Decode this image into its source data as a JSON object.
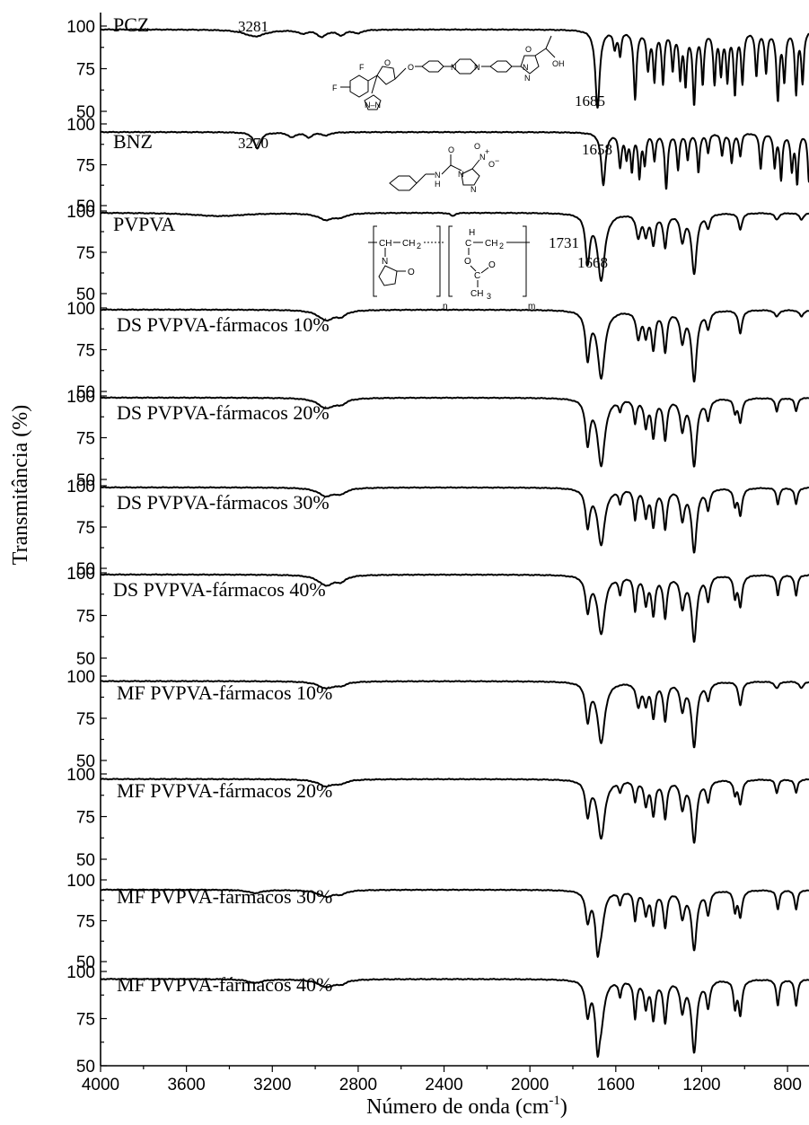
{
  "chart_data": {
    "type": "line",
    "xlabel": "Número de onda (cm",
    "xlabel_sup": "-1",
    "xlabel_close": ")",
    "ylabel": "Transmitância (%)",
    "xlim": [
      4000,
      700
    ],
    "x_ticks": [
      4000,
      3600,
      3200,
      2800,
      2400,
      2000,
      1600,
      1200,
      800
    ],
    "y_ticks": [
      50,
      75,
      100
    ],
    "series": [
      {
        "name": "PCZ",
        "baseline": 98,
        "bands": [
          [
            3281,
            4,
            60
          ],
          [
            3060,
            2,
            25
          ],
          [
            2970,
            4,
            25
          ],
          [
            2880,
            3,
            25
          ],
          [
            2800,
            2,
            20
          ],
          [
            1685,
            46,
            12
          ],
          [
            1605,
            10,
            8
          ],
          [
            1580,
            14,
            7
          ],
          [
            1510,
            40,
            8
          ],
          [
            1450,
            22,
            8
          ],
          [
            1420,
            28,
            7
          ],
          [
            1380,
            30,
            7
          ],
          [
            1335,
            22,
            7
          ],
          [
            1300,
            26,
            7
          ],
          [
            1275,
            30,
            7
          ],
          [
            1235,
            42,
            8
          ],
          [
            1195,
            30,
            7
          ],
          [
            1140,
            30,
            7
          ],
          [
            1110,
            24,
            7
          ],
          [
            1080,
            28,
            7
          ],
          [
            1045,
            36,
            7
          ],
          [
            1010,
            30,
            7
          ],
          [
            945,
            26,
            7
          ],
          [
            900,
            24,
            7
          ],
          [
            845,
            40,
            8
          ],
          [
            815,
            28,
            7
          ],
          [
            760,
            36,
            7
          ],
          [
            730,
            30,
            7
          ]
        ],
        "annotations": [
          {
            "text": "3281",
            "x": 3281
          },
          {
            "text": "1685",
            "x": 1685
          }
        ]
      },
      {
        "name": "BNZ",
        "baseline": 95,
        "bands": [
          [
            3270,
            10,
            18
          ],
          [
            3110,
            3,
            20
          ],
          [
            3030,
            3,
            20
          ],
          [
            2950,
            2,
            20
          ],
          [
            1658,
            32,
            12
          ],
          [
            1580,
            20,
            8
          ],
          [
            1550,
            14,
            7
          ],
          [
            1525,
            22,
            7
          ],
          [
            1490,
            26,
            7
          ],
          [
            1465,
            18,
            7
          ],
          [
            1420,
            16,
            7
          ],
          [
            1365,
            34,
            8
          ],
          [
            1310,
            22,
            7
          ],
          [
            1265,
            16,
            7
          ],
          [
            1215,
            24,
            7
          ],
          [
            1170,
            12,
            7
          ],
          [
            1105,
            14,
            7
          ],
          [
            1060,
            18,
            7
          ],
          [
            1020,
            14,
            7
          ],
          [
            925,
            22,
            7
          ],
          [
            860,
            20,
            7
          ],
          [
            830,
            28,
            7
          ],
          [
            780,
            22,
            7
          ],
          [
            755,
            30,
            7
          ],
          [
            700,
            30,
            7
          ]
        ],
        "annotations": [
          {
            "text": "3270",
            "x": 3270
          },
          {
            "text": "1658",
            "x": 1658
          }
        ]
      },
      {
        "name": "PVPVA",
        "baseline": 99,
        "bands": [
          [
            3450,
            2,
            150
          ],
          [
            2950,
            4,
            45
          ],
          [
            2880,
            2,
            30
          ],
          [
            2360,
            2,
            12
          ],
          [
            1731,
            28,
            12
          ],
          [
            1668,
            40,
            20
          ],
          [
            1495,
            14,
            12
          ],
          [
            1460,
            12,
            10
          ],
          [
            1425,
            18,
            10
          ],
          [
            1370,
            20,
            10
          ],
          [
            1290,
            16,
            12
          ],
          [
            1235,
            36,
            14
          ],
          [
            1170,
            8,
            10
          ],
          [
            1020,
            10,
            10
          ],
          [
            850,
            4,
            12
          ],
          [
            735,
            4,
            12
          ]
        ],
        "annotations": [
          {
            "text": "1731",
            "x": 1731
          },
          {
            "text": "1668",
            "x": 1668
          }
        ]
      },
      {
        "name": "DS PVPVA-fármacos 10%",
        "baseline": 99,
        "bands": [
          [
            2950,
            6,
            45
          ],
          [
            2880,
            3,
            30
          ],
          [
            1731,
            28,
            12
          ],
          [
            1668,
            40,
            20
          ],
          [
            1495,
            16,
            12
          ],
          [
            1460,
            14,
            10
          ],
          [
            1425,
            22,
            10
          ],
          [
            1370,
            24,
            10
          ],
          [
            1290,
            18,
            12
          ],
          [
            1235,
            42,
            14
          ],
          [
            1170,
            10,
            10
          ],
          [
            1020,
            14,
            10
          ],
          [
            850,
            4,
            12
          ],
          [
            735,
            4,
            12
          ]
        ]
      },
      {
        "name": "DS PVPVA-fármacos 20%",
        "baseline": 99,
        "bands": [
          [
            2950,
            6,
            45
          ],
          [
            2880,
            3,
            30
          ],
          [
            1731,
            26,
            12
          ],
          [
            1668,
            40,
            20
          ],
          [
            1580,
            6,
            8
          ],
          [
            1510,
            14,
            8
          ],
          [
            1460,
            16,
            10
          ],
          [
            1425,
            22,
            10
          ],
          [
            1370,
            24,
            10
          ],
          [
            1290,
            18,
            12
          ],
          [
            1235,
            40,
            14
          ],
          [
            1170,
            12,
            10
          ],
          [
            1045,
            8,
            8
          ],
          [
            1020,
            14,
            10
          ],
          [
            850,
            8,
            8
          ],
          [
            760,
            8,
            8
          ]
        ]
      },
      {
        "name": "DS PVPVA-fármacos 30%",
        "baseline": 99,
        "bands": [
          [
            2950,
            5,
            45
          ],
          [
            2880,
            3,
            30
          ],
          [
            1731,
            22,
            12
          ],
          [
            1668,
            34,
            20
          ],
          [
            1580,
            8,
            8
          ],
          [
            1510,
            18,
            8
          ],
          [
            1460,
            16,
            10
          ],
          [
            1425,
            22,
            10
          ],
          [
            1370,
            24,
            10
          ],
          [
            1290,
            18,
            12
          ],
          [
            1235,
            38,
            14
          ],
          [
            1170,
            12,
            10
          ],
          [
            1045,
            10,
            8
          ],
          [
            1020,
            16,
            10
          ],
          [
            845,
            10,
            8
          ],
          [
            760,
            10,
            8
          ]
        ]
      },
      {
        "name": "DS PVPVA-fármacos 40%",
        "baseline": 99,
        "bands": [
          [
            2950,
            6,
            45
          ],
          [
            2880,
            3,
            30
          ],
          [
            1731,
            20,
            12
          ],
          [
            1668,
            34,
            20
          ],
          [
            1580,
            10,
            8
          ],
          [
            1510,
            20,
            8
          ],
          [
            1460,
            16,
            10
          ],
          [
            1425,
            22,
            10
          ],
          [
            1370,
            24,
            10
          ],
          [
            1290,
            18,
            12
          ],
          [
            1235,
            38,
            14
          ],
          [
            1170,
            14,
            10
          ],
          [
            1045,
            12,
            8
          ],
          [
            1020,
            18,
            10
          ],
          [
            845,
            12,
            8
          ],
          [
            760,
            12,
            8
          ]
        ]
      },
      {
        "name": "MF PVPVA-fármacos 10%",
        "baseline": 97,
        "bands": [
          [
            2950,
            4,
            45
          ],
          [
            2880,
            2,
            30
          ],
          [
            1731,
            22,
            12
          ],
          [
            1668,
            36,
            20
          ],
          [
            1495,
            14,
            12
          ],
          [
            1460,
            12,
            10
          ],
          [
            1425,
            20,
            10
          ],
          [
            1370,
            22,
            10
          ],
          [
            1290,
            16,
            12
          ],
          [
            1235,
            38,
            14
          ],
          [
            1170,
            10,
            10
          ],
          [
            1020,
            14,
            10
          ],
          [
            850,
            4,
            12
          ],
          [
            735,
            4,
            12
          ]
        ]
      },
      {
        "name": "MF PVPVA-fármacos 20%",
        "baseline": 97,
        "bands": [
          [
            2950,
            4,
            45
          ],
          [
            2880,
            2,
            30
          ],
          [
            1731,
            20,
            12
          ],
          [
            1668,
            34,
            20
          ],
          [
            1580,
            6,
            8
          ],
          [
            1510,
            12,
            8
          ],
          [
            1460,
            14,
            10
          ],
          [
            1425,
            20,
            10
          ],
          [
            1370,
            22,
            10
          ],
          [
            1290,
            16,
            12
          ],
          [
            1235,
            36,
            14
          ],
          [
            1170,
            12,
            10
          ],
          [
            1045,
            8,
            8
          ],
          [
            1020,
            14,
            10
          ],
          [
            850,
            8,
            8
          ],
          [
            760,
            8,
            8
          ]
        ]
      },
      {
        "name": "MF PVPVA-fármacos 30%",
        "baseline": 94,
        "bands": [
          [
            3281,
            2,
            40
          ],
          [
            2950,
            4,
            45
          ],
          [
            2880,
            2,
            30
          ],
          [
            1731,
            18,
            12
          ],
          [
            1685,
            30,
            12
          ],
          [
            1668,
            18,
            18
          ],
          [
            1580,
            8,
            8
          ],
          [
            1510,
            18,
            8
          ],
          [
            1460,
            14,
            10
          ],
          [
            1425,
            20,
            10
          ],
          [
            1370,
            22,
            10
          ],
          [
            1290,
            16,
            12
          ],
          [
            1235,
            36,
            14
          ],
          [
            1170,
            14,
            10
          ],
          [
            1045,
            12,
            8
          ],
          [
            1020,
            16,
            10
          ],
          [
            845,
            12,
            8
          ],
          [
            760,
            12,
            8
          ]
        ]
      },
      {
        "name": "MF PVPVA-fármacos 40%",
        "baseline": 96,
        "bands": [
          [
            3281,
            2,
            40
          ],
          [
            2950,
            4,
            45
          ],
          [
            2880,
            2,
            30
          ],
          [
            1731,
            18,
            12
          ],
          [
            1685,
            30,
            12
          ],
          [
            1668,
            18,
            18
          ],
          [
            1580,
            8,
            8
          ],
          [
            1510,
            20,
            8
          ],
          [
            1460,
            14,
            10
          ],
          [
            1425,
            20,
            10
          ],
          [
            1370,
            22,
            10
          ],
          [
            1290,
            16,
            12
          ],
          [
            1235,
            38,
            14
          ],
          [
            1170,
            14,
            10
          ],
          [
            1045,
            14,
            8
          ],
          [
            1020,
            18,
            10
          ],
          [
            845,
            14,
            8
          ],
          [
            760,
            14,
            8
          ]
        ]
      }
    ]
  },
  "structures": {
    "pcz_atoms": {
      "f1": "F",
      "f2": "F",
      "o1": "O",
      "o2": "O",
      "o3": "O",
      "n": "N",
      "oh": "OH",
      "triazole": "N–N"
    },
    "bnz_atoms": {
      "o": "O",
      "nh": "N",
      "h": "H",
      "no2": "N",
      "o_minus": "O",
      "plus": "+",
      "minus": "−"
    },
    "pvpva_atoms": {
      "ch": "CH",
      "ch2": "CH",
      "h": "H",
      "c": "C",
      "o": "O",
      "ch3": "CH",
      "n": "N",
      "sub_n": "n",
      "sub_m": "m",
      "two": "2",
      "three": "3"
    }
  }
}
